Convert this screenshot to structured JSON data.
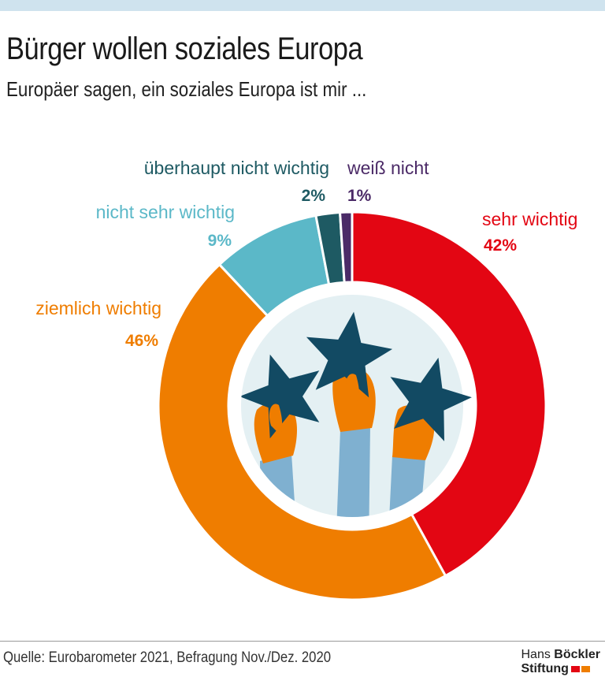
{
  "header": {
    "title": "Bürger wollen soziales Europa",
    "subtitle": "Europäer sagen, ein soziales Europa ist mir ..."
  },
  "colors": {
    "sehr_wichtig": "#e30613",
    "ziemlich_wichtig": "#ef7d00",
    "nicht_sehr_wichtig": "#5bb8c8",
    "ueberhaupt_nicht_wichtig": "#1e5a63",
    "weiss_nicht": "#4b2a67",
    "star": "#124a63",
    "hand": "#ef7d00",
    "sleeve": "#7fb0d0",
    "inner_circle": "#e4f0f3",
    "logo_red": "#e30613",
    "logo_orange": "#ef7d00"
  },
  "chart_data": {
    "type": "pie",
    "donut": true,
    "title": "Bürger wollen soziales Europa",
    "subtitle": "Europäer sagen, ein soziales Europa ist mir ...",
    "categories": [
      "sehr wichtig",
      "ziemlich wichtig",
      "nicht sehr wichtig",
      "überhaupt nicht wichtig",
      "weiß nicht"
    ],
    "values": [
      42,
      46,
      9,
      2,
      1
    ],
    "value_labels": [
      "42%",
      "46%",
      "9%",
      "2%",
      "1%"
    ],
    "color_keys": [
      "sehr_wichtig",
      "ziemlich_wichtig",
      "nicht_sehr_wichtig",
      "ueberhaupt_nicht_wichtig",
      "weiss_nicht"
    ],
    "start": "top",
    "direction": "clockwise",
    "legend": "direct labels around the ring"
  },
  "footer": {
    "source": "Quelle: Eurobarometer 2021, Befragung Nov./Dez. 2020",
    "logo_line1_a": "Hans",
    "logo_line1_b": "Böckler",
    "logo_line2": "Stiftung"
  }
}
